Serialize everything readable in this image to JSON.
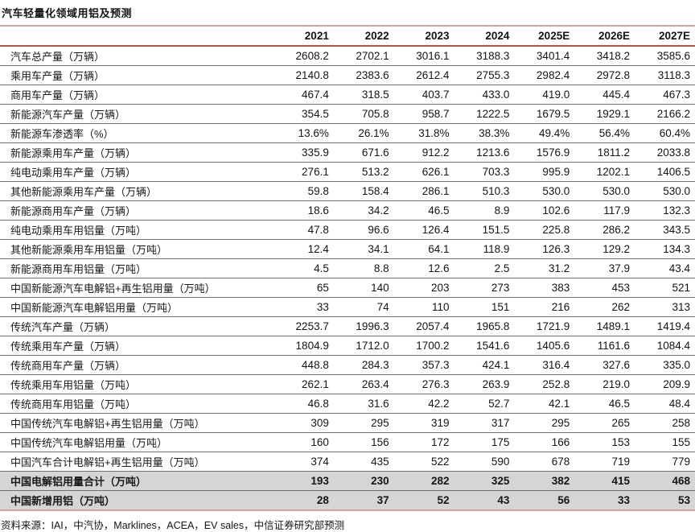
{
  "title": "汽车轻量化领域用铝及预测",
  "colors": {
    "accent_red": "#bf4f4a",
    "accent_red_light": "#dfa09b",
    "row_separator": "#6e6e6e",
    "highlight_row_bg": "#d5d5d5"
  },
  "table": {
    "years": [
      "2021",
      "2022",
      "2023",
      "2024",
      "2025E",
      "2026E",
      "2027E"
    ],
    "rows": [
      {
        "label": "汽车总产量（万辆）",
        "values": [
          "2608.2",
          "2702.1",
          "3016.1",
          "3188.3",
          "3401.4",
          "3418.2",
          "3585.6"
        ],
        "highlight": false
      },
      {
        "label": "乘用车产量（万辆）",
        "values": [
          "2140.8",
          "2383.6",
          "2612.4",
          "2755.3",
          "2982.4",
          "2972.8",
          "3118.3"
        ],
        "highlight": false
      },
      {
        "label": "商用车产量（万辆）",
        "values": [
          "467.4",
          "318.5",
          "403.7",
          "433.0",
          "419.0",
          "445.4",
          "467.3"
        ],
        "highlight": false
      },
      {
        "label": "新能源汽车产量（万辆）",
        "values": [
          "354.5",
          "705.8",
          "958.7",
          "1222.5",
          "1679.5",
          "1929.1",
          "2166.2"
        ],
        "highlight": false
      },
      {
        "label": "新能源车渗透率（%）",
        "values": [
          "13.6%",
          "26.1%",
          "31.8%",
          "38.3%",
          "49.4%",
          "56.4%",
          "60.4%"
        ],
        "highlight": false
      },
      {
        "label": "新能源乘用车产量（万辆）",
        "values": [
          "335.9",
          "671.6",
          "912.2",
          "1213.6",
          "1576.9",
          "1811.2",
          "2033.8"
        ],
        "highlight": false
      },
      {
        "label": "纯电动乘用车产量（万辆）",
        "values": [
          "276.1",
          "513.2",
          "626.1",
          "703.3",
          "995.9",
          "1202.1",
          "1406.5"
        ],
        "highlight": false
      },
      {
        "label": "其他新能源乘用车产量（万辆）",
        "values": [
          "59.8",
          "158.4",
          "286.1",
          "510.3",
          "530.0",
          "530.0",
          "530.0"
        ],
        "highlight": false
      },
      {
        "label": "新能源商用车产量（万辆）",
        "values": [
          "18.6",
          "34.2",
          "46.5",
          "8.9",
          "102.6",
          "117.9",
          "132.3"
        ],
        "highlight": false
      },
      {
        "label": "纯电动乘用车用铝量（万吨）",
        "values": [
          "47.8",
          "96.6",
          "126.4",
          "151.5",
          "225.8",
          "286.2",
          "343.5"
        ],
        "highlight": false
      },
      {
        "label": "其他新能源乘用车用铝量（万吨）",
        "values": [
          "12.4",
          "34.1",
          "64.1",
          "118.9",
          "126.3",
          "129.2",
          "134.3"
        ],
        "highlight": false
      },
      {
        "label": "新能源商用车用铝量（万吨）",
        "values": [
          "4.5",
          "8.8",
          "12.6",
          "2.5",
          "31.2",
          "37.9",
          "43.4"
        ],
        "highlight": false
      },
      {
        "label": "中国新能源汽车电解铝+再生铝用量（万吨）",
        "values": [
          "65",
          "140",
          "203",
          "273",
          "383",
          "453",
          "521"
        ],
        "highlight": false
      },
      {
        "label": "中国新能源汽车电解铝用量（万吨）",
        "values": [
          "33",
          "74",
          "110",
          "151",
          "216",
          "262",
          "313"
        ],
        "highlight": false
      },
      {
        "label": "传统汽车产量（万辆）",
        "values": [
          "2253.7",
          "1996.3",
          "2057.4",
          "1965.8",
          "1721.9",
          "1489.1",
          "1419.4"
        ],
        "highlight": false
      },
      {
        "label": "传统乘用车产量（万辆）",
        "values": [
          "1804.9",
          "1712.0",
          "1700.2",
          "1541.6",
          "1405.6",
          "1161.6",
          "1084.4"
        ],
        "highlight": false
      },
      {
        "label": "传统商用车产量（万辆）",
        "values": [
          "448.8",
          "284.3",
          "357.3",
          "424.1",
          "316.4",
          "327.6",
          "335.0"
        ],
        "highlight": false
      },
      {
        "label": "传统乘用车用铝量（万吨）",
        "values": [
          "262.1",
          "263.4",
          "276.3",
          "263.9",
          "252.8",
          "219.0",
          "209.9"
        ],
        "highlight": false
      },
      {
        "label": "传统商用车用铝量（万吨）",
        "values": [
          "46.8",
          "31.6",
          "42.2",
          "52.7",
          "42.1",
          "46.5",
          "48.4"
        ],
        "highlight": false
      },
      {
        "label": "中国传统汽车电解铝+再生铝用量（万吨）",
        "values": [
          "309",
          "295",
          "319",
          "317",
          "295",
          "265",
          "258"
        ],
        "highlight": false
      },
      {
        "label": "中国传统汽车电解铝用量（万吨）",
        "values": [
          "160",
          "156",
          "172",
          "175",
          "166",
          "153",
          "155"
        ],
        "highlight": false
      },
      {
        "label": "中国汽车合计电解铝+再生铝用量（万吨）",
        "values": [
          "374",
          "435",
          "522",
          "590",
          "678",
          "719",
          "779"
        ],
        "highlight": false
      },
      {
        "label": "中国电解铝用量合计（万吨）",
        "values": [
          "193",
          "230",
          "282",
          "325",
          "382",
          "415",
          "468"
        ],
        "highlight": true
      },
      {
        "label": "中国新增用铝（万吨）",
        "values": [
          "28",
          "37",
          "52",
          "43",
          "56",
          "33",
          "53"
        ],
        "highlight": true
      }
    ]
  },
  "source_note": "资料来源：IAI，中汽协，Marklines，ACEA，EV sales，中信证券研究部预测"
}
